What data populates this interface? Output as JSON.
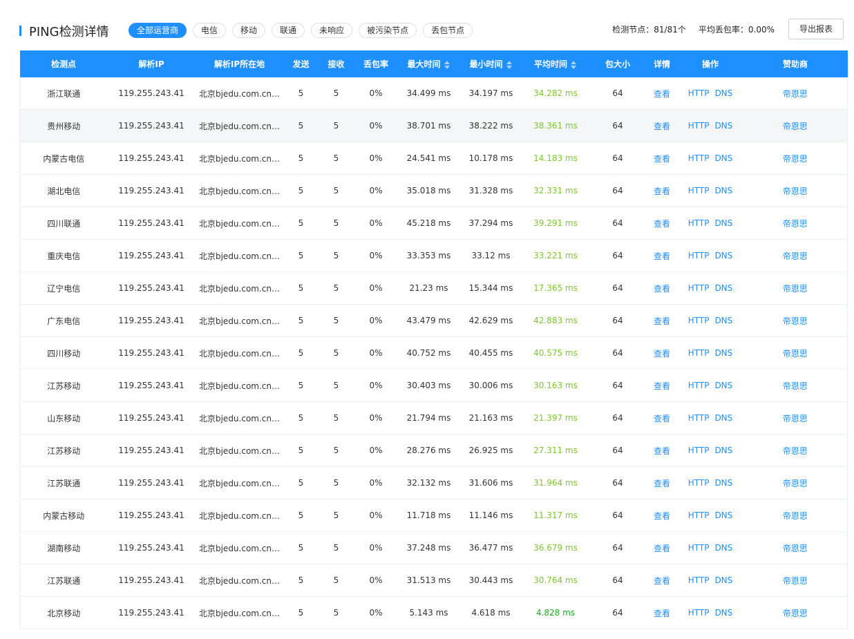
{
  "header": {
    "title": "PING检测详情",
    "tabs": [
      "全部运营商",
      "电信",
      "移动",
      "联通",
      "未响应",
      "被污染节点",
      "丢包节点"
    ],
    "stats": [
      "检测节点：81/81个",
      "平均丢包率：0.00%"
    ],
    "export": "导出报表"
  },
  "table": {
    "columns": [
      "检测点",
      "解析IP",
      "解析IP所在地",
      "发送",
      "接收",
      "丢包率",
      "最大时间",
      "最小时间",
      "平均时间",
      "包大小",
      "详情",
      "操作",
      "赞助商"
    ],
    "rows": [
      [
        "浙江联通",
        "119.255.243.41",
        "北京bjedu.com.cn…",
        "5",
        "5",
        "0%",
        "34.499 ms",
        "34.197 ms",
        "34.282 ms",
        "64",
        "查看",
        [
          "HTTP",
          "DNS"
        ],
        "帝恩思"
      ],
      [
        "贵州移动",
        "119.255.243.41",
        "北京bjedu.com.cn…",
        "5",
        "5",
        "0%",
        "38.701 ms",
        "38.222 ms",
        "38.361 ms",
        "64",
        "查看",
        [
          "HTTP",
          "DNS"
        ],
        "帝恩思"
      ],
      [
        "内蒙古电信",
        "119.255.243.41",
        "北京bjedu.com.cn…",
        "5",
        "5",
        "0%",
        "24.541 ms",
        "10.178 ms",
        "14.183 ms",
        "64",
        "查看",
        [
          "HTTP",
          "DNS"
        ],
        "帝恩思"
      ],
      [
        "湖北电信",
        "119.255.243.41",
        "北京bjedu.com.cn…",
        "5",
        "5",
        "0%",
        "35.018 ms",
        "31.328 ms",
        "32.331 ms",
        "64",
        "查看",
        [
          "HTTP",
          "DNS"
        ],
        "帝恩思"
      ],
      [
        "四川联通",
        "119.255.243.41",
        "北京bjedu.com.cn…",
        "5",
        "5",
        "0%",
        "45.218 ms",
        "37.294 ms",
        "39.291 ms",
        "64",
        "查看",
        [
          "HTTP",
          "DNS"
        ],
        "帝恩思"
      ],
      [
        "重庆电信",
        "119.255.243.41",
        "北京bjedu.com.cn…",
        "5",
        "5",
        "0%",
        "33.353 ms",
        "33.12 ms",
        "33.221 ms",
        "64",
        "查看",
        [
          "HTTP",
          "DNS"
        ],
        "帝恩思"
      ],
      [
        "辽宁电信",
        "119.255.243.41",
        "北京bjedu.com.cn…",
        "5",
        "5",
        "0%",
        "21.23 ms",
        "15.344 ms",
        "17.365 ms",
        "64",
        "查看",
        [
          "HTTP",
          "DNS"
        ],
        "帝恩思"
      ],
      [
        "广东电信",
        "119.255.243.41",
        "北京bjedu.com.cn…",
        "5",
        "5",
        "0%",
        "43.479 ms",
        "42.629 ms",
        "42.883 ms",
        "64",
        "查看",
        [
          "HTTP",
          "DNS"
        ],
        "帝恩思"
      ],
      [
        "四川移动",
        "119.255.243.41",
        "北京bjedu.com.cn…",
        "5",
        "5",
        "0%",
        "40.752 ms",
        "40.455 ms",
        "40.575 ms",
        "64",
        "查看",
        [
          "HTTP",
          "DNS"
        ],
        "帝恩思"
      ],
      [
        "江苏移动",
        "119.255.243.41",
        "北京bjedu.com.cn…",
        "5",
        "5",
        "0%",
        "30.403 ms",
        "30.006 ms",
        "30.163 ms",
        "64",
        "查看",
        [
          "HTTP",
          "DNS"
        ],
        "帝恩思"
      ],
      [
        "山东移动",
        "119.255.243.41",
        "北京bjedu.com.cn…",
        "5",
        "5",
        "0%",
        "21.794 ms",
        "21.163 ms",
        "21.397 ms",
        "64",
        "查看",
        [
          "HTTP",
          "DNS"
        ],
        "帝恩思"
      ],
      [
        "江苏移动",
        "119.255.243.41",
        "北京bjedu.com.cn…",
        "5",
        "5",
        "0%",
        "28.276 ms",
        "26.925 ms",
        "27.311 ms",
        "64",
        "查看",
        [
          "HTTP",
          "DNS"
        ],
        "帝恩思"
      ],
      [
        "江苏联通",
        "119.255.243.41",
        "北京bjedu.com.cn…",
        "5",
        "5",
        "0%",
        "32.132 ms",
        "31.606 ms",
        "31.964 ms",
        "64",
        "查看",
        [
          "HTTP",
          "DNS"
        ],
        "帝恩思"
      ],
      [
        "内蒙古移动",
        "119.255.243.41",
        "北京bjedu.com.cn…",
        "5",
        "5",
        "0%",
        "11.718 ms",
        "11.146 ms",
        "11.317 ms",
        "64",
        "查看",
        [
          "HTTP",
          "DNS"
        ],
        "帝恩思"
      ],
      [
        "湖南移动",
        "119.255.243.41",
        "北京bjedu.com.cn…",
        "5",
        "5",
        "0%",
        "37.248 ms",
        "36.477 ms",
        "36.679 ms",
        "64",
        "查看",
        [
          "HTTP",
          "DNS"
        ],
        "帝恩思"
      ],
      [
        "江苏联通",
        "119.255.243.41",
        "北京bjedu.com.cn…",
        "5",
        "5",
        "0%",
        "31.513 ms",
        "30.443 ms",
        "30.764 ms",
        "64",
        "查看",
        [
          "HTTP",
          "DNS"
        ],
        "帝恩思"
      ],
      [
        "北京移动",
        "119.255.243.41",
        "北京bjedu.com.cn…",
        "5",
        "5",
        "0%",
        "5.143 ms",
        "4.618 ms",
        "4.828 ms",
        "64",
        "查看",
        [
          "HTTP",
          "DNS"
        ],
        "帝恩思"
      ]
    ]
  }
}
